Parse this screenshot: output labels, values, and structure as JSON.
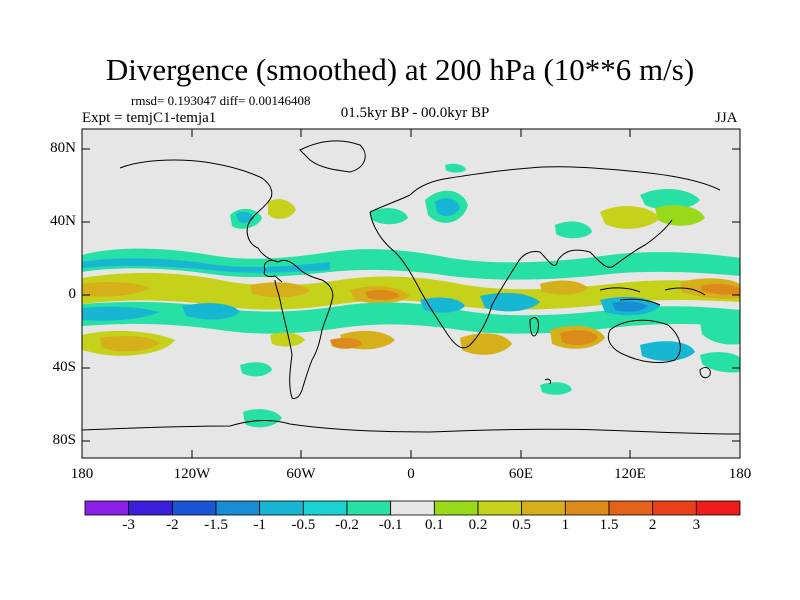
{
  "title": "Divergence (smoothed) at 200 hPa (10**6 m/s)",
  "stats": "rmsd= 0.193047 diff= 0.00146408",
  "experiment": "Expt = temjC1-temja1",
  "period": "01.5kyr BP - 00.0kyr BP",
  "season": "JJA",
  "lat_ticks": [
    "80N",
    "40N",
    "0",
    "40S",
    "80S"
  ],
  "lon_ticks": [
    "180",
    "120W",
    "60W",
    "0",
    "60E",
    "120E",
    "180"
  ],
  "colorbar": {
    "labels": [
      "-3",
      "-2",
      "-1.5",
      "-1",
      "-0.5",
      "-0.2",
      "-0.1",
      "0.1",
      "0.2",
      "0.5",
      "1",
      "1.5",
      "2",
      "3"
    ],
    "colors": [
      "#8c1fe6",
      "#3c1fdc",
      "#1a55d6",
      "#178ed4",
      "#17b6d2",
      "#1ad3d2",
      "#27e0a6",
      "#e6e6e6",
      "#9ad81a",
      "#c6d21a",
      "#d6b01a",
      "#dc8a1a",
      "#e4621a",
      "#e8401a",
      "#ee1c1a"
    ]
  },
  "colors": {
    "background": "#e6e6e6",
    "coast": "#000000"
  }
}
